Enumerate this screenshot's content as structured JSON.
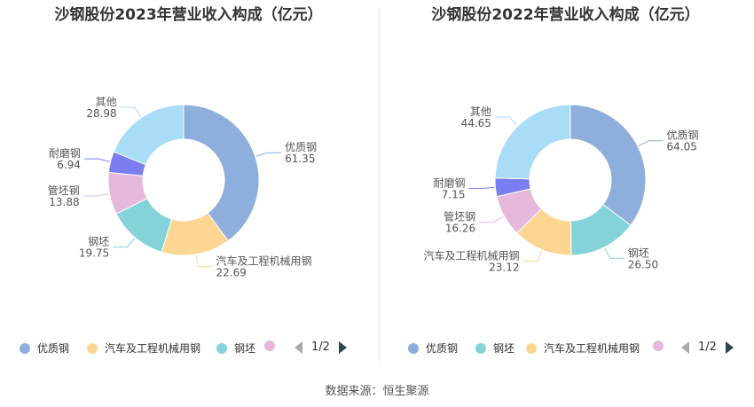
{
  "source": "数据来源：恒生聚源",
  "chart_data": [
    {
      "type": "pie",
      "donut": true,
      "title": "沙钢股份2023年营业收入构成（亿元）",
      "slices": [
        {
          "name": "优质钢",
          "value": 61.35,
          "value_label": "61.35",
          "color": "#8eaedb"
        },
        {
          "name": "汽车及工程机械用钢",
          "value": 22.69,
          "value_label": "22.69",
          "color": "#fdd694"
        },
        {
          "name": "钢坯",
          "value": 19.75,
          "value_label": "19.75",
          "color": "#84d3d8"
        },
        {
          "name": "管坯钢",
          "value": 13.88,
          "value_label": "13.88",
          "color": "#e5b8dc"
        },
        {
          "name": "耐磨钢",
          "value": 6.94,
          "value_label": "6.94",
          "color": "#7b7ef0"
        },
        {
          "name": "其他",
          "value": 28.98,
          "value_label": "28.98",
          "color": "#a9dcf7"
        }
      ],
      "legend": [
        "优质钢",
        "汽车及工程机械用钢",
        "钢坯",
        ""
      ],
      "legend_colors": [
        "#8eaedb",
        "#fdd694",
        "#84d3d8",
        "#e5b8dc"
      ],
      "legend_position": "bottom",
      "pager": "1/2"
    },
    {
      "type": "pie",
      "donut": true,
      "title": "沙钢股份2022年营业收入构成（亿元）",
      "slices": [
        {
          "name": "优质钢",
          "value": 64.05,
          "value_label": "64.05",
          "color": "#8eaedb"
        },
        {
          "name": "钢坯",
          "value": 26.5,
          "value_label": "26.50",
          "color": "#84d3d8"
        },
        {
          "name": "汽车及工程机械用钢",
          "value": 23.12,
          "value_label": "23.12",
          "color": "#fdd694"
        },
        {
          "name": "管坯钢",
          "value": 16.26,
          "value_label": "16.26",
          "color": "#e5b8dc"
        },
        {
          "name": "耐磨钢",
          "value": 7.15,
          "value_label": "7.15",
          "color": "#7b7ef0"
        },
        {
          "name": "其他",
          "value": 44.65,
          "value_label": "44.65",
          "color": "#a9dcf7"
        }
      ],
      "legend": [
        "优质钢",
        "钢坯",
        "汽车及工程机械用钢",
        ""
      ],
      "legend_colors": [
        "#8eaedb",
        "#84d3d8",
        "#fdd694",
        "#e5b8dc"
      ],
      "legend_position": "bottom",
      "pager": "1/2"
    }
  ]
}
